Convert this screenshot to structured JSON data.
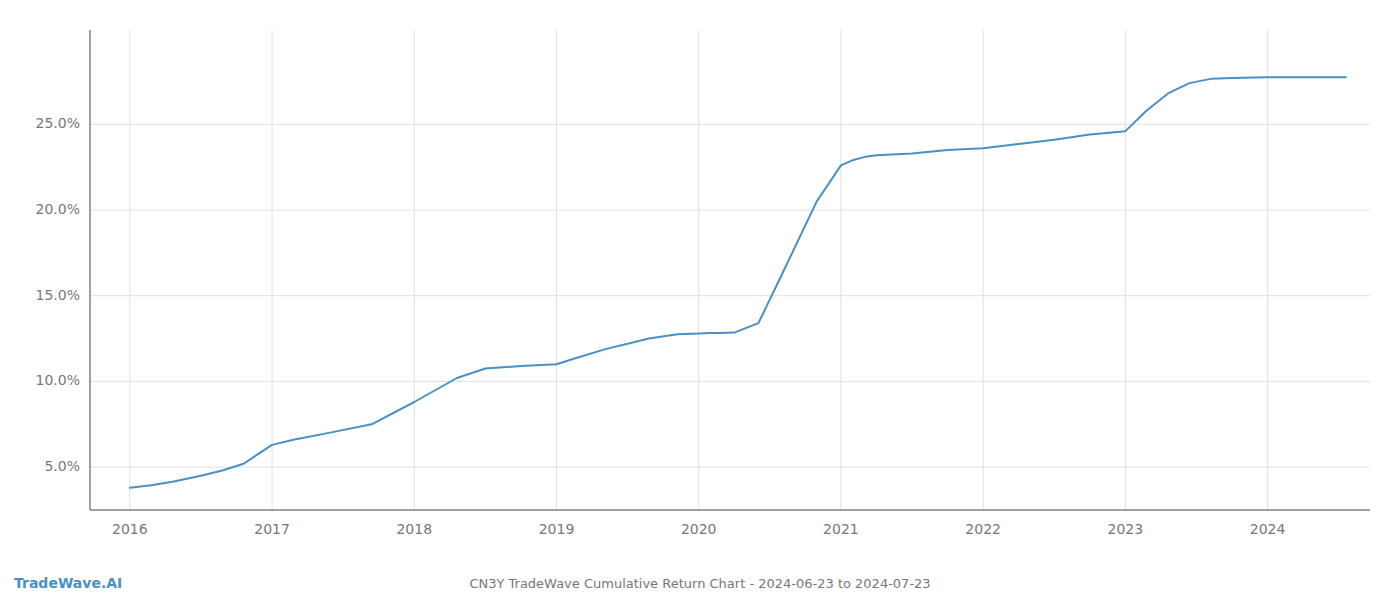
{
  "chart_data": {
    "type": "line",
    "title": "CN3Y TradeWave Cumulative Return Chart - 2024-06-23 to 2024-07-23",
    "annotations": [
      "TradeWave.AI"
    ],
    "color": "#4a90c4",
    "grid": true,
    "x": [
      2016.0,
      2016.15,
      2016.3,
      2016.5,
      2016.65,
      2016.8,
      2017.0,
      2017.15,
      2017.4,
      2017.7,
      2018.0,
      2018.15,
      2018.3,
      2018.5,
      2018.75,
      2019.0,
      2019.15,
      2019.35,
      2019.5,
      2019.65,
      2019.85,
      2020.0,
      2020.08,
      2020.15,
      2020.25,
      2020.42,
      2020.6,
      2020.83,
      2021.0,
      2021.08,
      2021.17,
      2021.25,
      2021.5,
      2021.75,
      2022.0,
      2022.25,
      2022.5,
      2022.75,
      2023.0,
      2023.15,
      2023.3,
      2023.45,
      2023.6,
      2023.75,
      2024.0,
      2024.3,
      2024.55
    ],
    "values": [
      3.8,
      3.95,
      4.15,
      4.5,
      4.8,
      5.2,
      6.3,
      6.6,
      7.0,
      7.5,
      8.8,
      9.5,
      10.2,
      10.75,
      10.9,
      11.0,
      11.4,
      11.9,
      12.2,
      12.5,
      12.75,
      12.8,
      12.82,
      12.82,
      12.85,
      13.4,
      16.5,
      20.5,
      22.6,
      22.9,
      23.1,
      23.2,
      23.3,
      23.5,
      23.6,
      23.85,
      24.1,
      24.4,
      24.6,
      25.8,
      26.8,
      27.4,
      27.65,
      27.7,
      27.75,
      27.75,
      27.75
    ],
    "xlim": [
      2015.72,
      2024.72
    ],
    "ylim": [
      2.5,
      30.5
    ],
    "xticks": [
      2016,
      2017,
      2018,
      2019,
      2020,
      2021,
      2022,
      2023,
      2024
    ],
    "yticks": [
      {
        "value": 5.0,
        "label": "5.0%"
      },
      {
        "value": 10.0,
        "label": "10.0%"
      },
      {
        "value": 15.0,
        "label": "15.0%"
      },
      {
        "value": 20.0,
        "label": "20.0%"
      },
      {
        "value": 25.0,
        "label": "25.0%"
      }
    ]
  }
}
